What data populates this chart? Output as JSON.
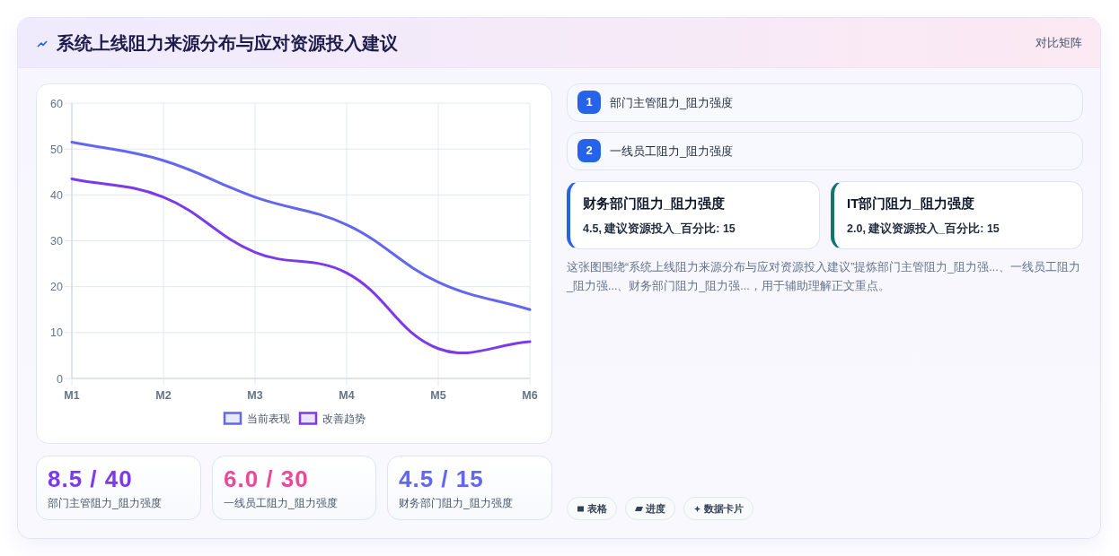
{
  "chart_data": [
    {
      "type": "other",
      "title": "系统上线阻力来源分布与应对资源投入建议",
      "annotations": [
        "对比矩阵"
      ]
    },
    {
      "type": "line",
      "categories": [
        "M1",
        "M2",
        "M3",
        "M4",
        "M5",
        "M6"
      ],
      "series": [
        {
          "name": "当前表现",
          "color": "#6366f1",
          "values": [
            51.5,
            47.5,
            39.5,
            33.5,
            21,
            15
          ]
        },
        {
          "name": "改善趋势",
          "color": "#7c3aed",
          "values": [
            43.5,
            39.5,
            27.5,
            23,
            6.5,
            8
          ]
        }
      ],
      "ylim": [
        0,
        60
      ],
      "yticks": [
        0,
        10,
        20,
        30,
        40,
        50,
        60
      ],
      "grid": true,
      "legend": "bottom"
    },
    {
      "type": "other",
      "title": "8.5 / 40",
      "subtitle": "部门主管阻力_阻力强度",
      "color": "#7c3aed"
    },
    {
      "type": "other",
      "title": "6.0 / 30",
      "subtitle": "一线员工阻力_阻力强度",
      "color": "#ec4899"
    },
    {
      "type": "other",
      "title": "4.5 / 15",
      "subtitle": "财务部门阻力_阻力强度",
      "color": "#6366f1"
    },
    {
      "type": "other",
      "categories": [
        "部门主管阻力_阻力强度",
        "一线员工阻力_阻力强度"
      ],
      "value_labels": [
        "1",
        "2"
      ],
      "color": "#2563eb"
    },
    {
      "type": "other",
      "title": "财务部门阻力_阻力强度",
      "subtitle": "4.5, 建议资源投入_百分比: 15",
      "color": "#2563eb"
    },
    {
      "type": "other",
      "title": "IT部门阻力_阻力强度",
      "subtitle": "2.0, 建议资源投入_百分比: 15",
      "color": "#0f766e"
    },
    {
      "type": "other",
      "annotations": [
        "这张图围绕“系统上线阻力来源分布与应对资源投入建议”提炼部门主管阻力_阻力强...、一线员工阻力_阻力强...、财务部门阻力_阻力强...，用于辅助理解正文重点。"
      ]
    },
    {
      "type": "other",
      "categories": [
        "表格",
        "进度",
        "数据卡片"
      ]
    }
  ]
}
